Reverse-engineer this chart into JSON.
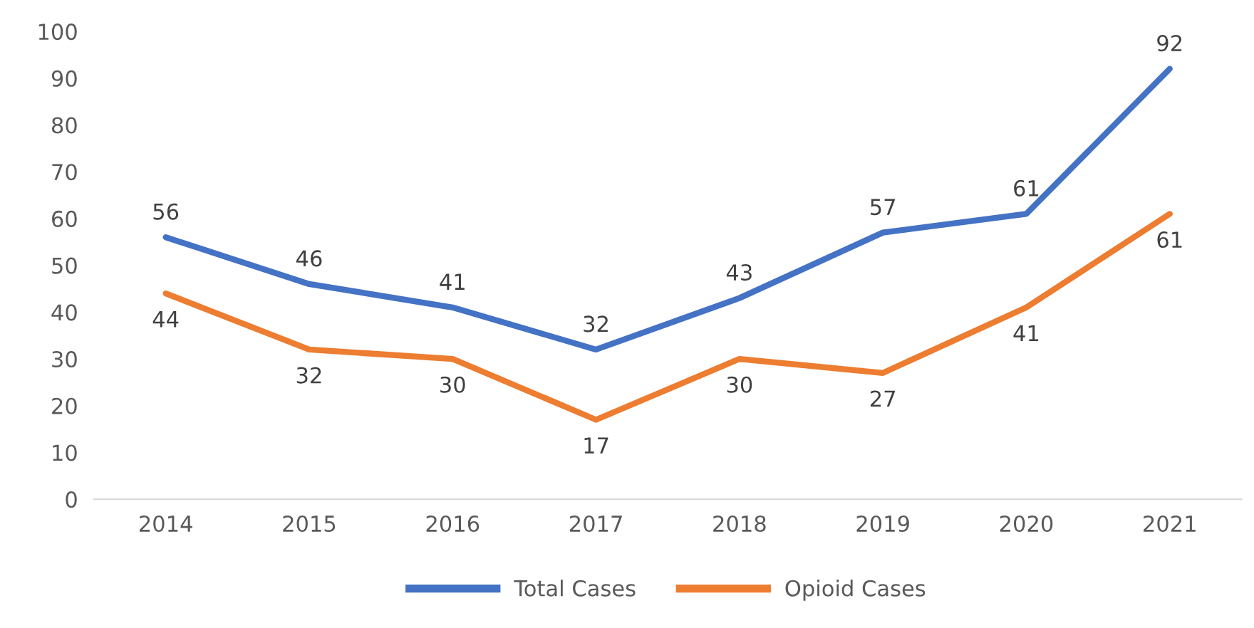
{
  "chart_data": {
    "type": "line",
    "categories": [
      "2014",
      "2015",
      "2016",
      "2017",
      "2018",
      "2019",
      "2020",
      "2021"
    ],
    "series": [
      {
        "name": "Total Cases",
        "color": "#4472c4",
        "values": [
          56,
          46,
          41,
          32,
          43,
          57,
          61,
          92
        ]
      },
      {
        "name": "Opioid Cases",
        "color": "#ed7d31",
        "values": [
          44,
          32,
          30,
          17,
          30,
          27,
          41,
          61
        ]
      }
    ],
    "ylim": [
      0,
      100
    ],
    "yticks": [
      0,
      10,
      20,
      30,
      40,
      50,
      60,
      70,
      80,
      90,
      100
    ],
    "grid": false,
    "legend": "bottom",
    "data_labels": true,
    "marker": "none",
    "line_style": "solid"
  }
}
